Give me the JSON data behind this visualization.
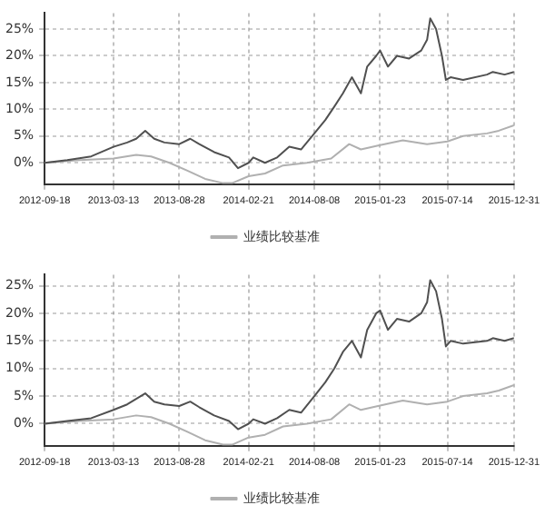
{
  "chart_data": [
    {
      "type": "line",
      "xlim": [
        "2012-09-18",
        "2015-12-31"
      ],
      "xticks": [
        "2012-09-18",
        "2013-03-13",
        "2013-08-28",
        "2014-02-21",
        "2014-08-08",
        "2015-01-23",
        "2015-07-14",
        "2015-12-31"
      ],
      "ylim": [
        -4,
        28
      ],
      "yticks": [
        {
          "value": 0,
          "label": "0%"
        },
        {
          "value": 5,
          "label": "5%"
        },
        {
          "value": 10,
          "label": "10%"
        },
        {
          "value": 15,
          "label": "15%"
        },
        {
          "value": 20,
          "label": "20%"
        },
        {
          "value": 25,
          "label": "25%"
        }
      ],
      "grid": true,
      "legend": "bottom",
      "series": [
        {
          "color": "#505050",
          "x": [
            "2012-09-18",
            "2012-11-15",
            "2013-01-15",
            "2013-03-13",
            "2013-04-17",
            "2013-05-10",
            "2013-06-02",
            "2013-06-25",
            "2013-07-21",
            "2013-08-28",
            "2013-09-25",
            "2013-10-18",
            "2013-11-25",
            "2014-01-02",
            "2014-01-25",
            "2014-02-21",
            "2014-03-05",
            "2014-04-04",
            "2014-05-05",
            "2014-06-05",
            "2014-07-05",
            "2014-08-08",
            "2014-09-05",
            "2014-09-28",
            "2014-10-20",
            "2014-11-12",
            "2014-12-05",
            "2014-12-21",
            "2015-01-13",
            "2015-01-23",
            "2015-02-12",
            "2015-03-07",
            "2015-04-07",
            "2015-05-08",
            "2015-05-23",
            "2015-05-31",
            "2015-06-15",
            "2015-06-30",
            "2015-07-10",
            "2015-07-22",
            "2015-08-23",
            "2015-10-23",
            "2015-11-07",
            "2015-12-07",
            "2015-12-31"
          ],
          "values": [
            0,
            0.5,
            1.2,
            3,
            3.8,
            4.5,
            6,
            4.5,
            3.8,
            3.5,
            4.5,
            3.5,
            2,
            1,
            -1,
            0,
            1,
            0,
            1,
            3,
            2.5,
            5.5,
            8,
            10.5,
            13,
            16,
            13,
            18,
            20,
            21,
            18,
            20,
            19.5,
            21,
            23,
            27,
            25,
            20,
            15.5,
            16,
            15.5,
            16.5,
            17,
            16.5,
            17
          ]
        },
        {
          "name": "业绩比较基准",
          "color": "#b0b0b0",
          "x": [
            "2012-09-18",
            "2012-12-16",
            "2013-03-13",
            "2013-05-10",
            "2013-06-17",
            "2013-08-03",
            "2013-09-19",
            "2013-11-02",
            "2013-12-18",
            "2014-01-10",
            "2014-02-21",
            "2014-04-04",
            "2014-05-20",
            "2014-07-20",
            "2014-09-20",
            "2014-11-05",
            "2014-12-05",
            "2015-01-23",
            "2015-03-22",
            "2015-05-23",
            "2015-07-14",
            "2015-08-23",
            "2015-10-23",
            "2015-11-22",
            "2015-12-31"
          ],
          "values": [
            0,
            0.5,
            0.8,
            1.5,
            1.2,
            0,
            -1.5,
            -3,
            -3.8,
            -3.8,
            -2.5,
            -2,
            -0.5,
            0,
            0.8,
            3.5,
            2.5,
            3.3,
            4.2,
            3.5,
            4,
            5,
            5.5,
            6,
            7
          ]
        }
      ]
    },
    {
      "type": "line",
      "xlim": [
        "2012-09-18",
        "2015-12-31"
      ],
      "xticks": [
        "2012-09-18",
        "2013-03-13",
        "2013-08-28",
        "2014-02-21",
        "2014-08-08",
        "2015-01-23",
        "2015-07-14",
        "2015-12-31"
      ],
      "ylim": [
        -4,
        27
      ],
      "yticks": [
        {
          "value": 0,
          "label": "0%"
        },
        {
          "value": 5,
          "label": "5%"
        },
        {
          "value": 10,
          "label": "10%"
        },
        {
          "value": 15,
          "label": "15%"
        },
        {
          "value": 20,
          "label": "20%"
        },
        {
          "value": 25,
          "label": "25%"
        }
      ],
      "grid": true,
      "legend": "bottom",
      "series": [
        {
          "color": "#505050",
          "x": [
            "2012-09-18",
            "2012-11-15",
            "2013-01-15",
            "2013-03-13",
            "2013-04-17",
            "2013-05-10",
            "2013-06-02",
            "2013-06-25",
            "2013-07-21",
            "2013-08-28",
            "2013-09-25",
            "2013-10-18",
            "2013-11-25",
            "2014-01-02",
            "2014-01-25",
            "2014-02-21",
            "2014-03-05",
            "2014-04-04",
            "2014-05-05",
            "2014-06-05",
            "2014-07-05",
            "2014-08-08",
            "2014-09-05",
            "2014-09-28",
            "2014-10-20",
            "2014-11-12",
            "2014-12-05",
            "2014-12-21",
            "2015-01-13",
            "2015-01-23",
            "2015-02-12",
            "2015-03-07",
            "2015-04-07",
            "2015-05-08",
            "2015-05-23",
            "2015-05-31",
            "2015-06-15",
            "2015-06-30",
            "2015-07-10",
            "2015-07-22",
            "2015-08-23",
            "2015-10-23",
            "2015-11-07",
            "2015-12-07",
            "2015-12-31"
          ],
          "values": [
            0,
            0.5,
            1,
            2.5,
            3.5,
            4.5,
            5.5,
            4,
            3.5,
            3.2,
            4,
            3,
            1.5,
            0.5,
            -1,
            0,
            0.8,
            0,
            1,
            2.5,
            2,
            5,
            7.5,
            10,
            13,
            15,
            12,
            17,
            20,
            20.5,
            17,
            19,
            18.5,
            20,
            22,
            26,
            24,
            19,
            14,
            15,
            14.5,
            15,
            15.5,
            15,
            15.5
          ]
        },
        {
          "name": "业绩比较基准",
          "color": "#b0b0b0",
          "x": [
            "2012-09-18",
            "2012-12-16",
            "2013-03-13",
            "2013-05-10",
            "2013-06-17",
            "2013-08-03",
            "2013-09-19",
            "2013-11-02",
            "2013-12-18",
            "2014-01-10",
            "2014-02-21",
            "2014-04-04",
            "2014-05-20",
            "2014-07-20",
            "2014-09-20",
            "2014-11-05",
            "2014-12-05",
            "2015-01-23",
            "2015-03-22",
            "2015-05-23",
            "2015-07-14",
            "2015-08-23",
            "2015-10-23",
            "2015-11-22",
            "2015-12-31"
          ],
          "values": [
            0,
            0.5,
            0.8,
            1.5,
            1.2,
            0,
            -1.5,
            -3,
            -3.8,
            -3.8,
            -2.5,
            -2,
            -0.5,
            0,
            0.8,
            3.5,
            2.5,
            3.3,
            4.2,
            3.5,
            4,
            5,
            5.5,
            6,
            7
          ]
        }
      ]
    }
  ]
}
